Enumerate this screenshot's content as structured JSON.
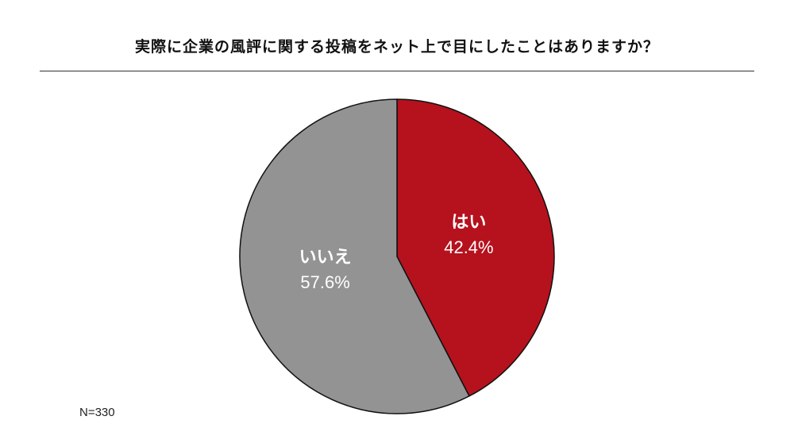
{
  "chart_data": {
    "type": "pie",
    "title": "実際に企業の風評に関する投稿をネット上で目にしたことはありますか？",
    "slices": [
      {
        "label": "はい",
        "value": 42.4,
        "value_label": "42.4%",
        "color": "#b5121d"
      },
      {
        "label": "いいえ",
        "value": 57.6,
        "value_label": "57.6%",
        "color": "#939393"
      }
    ],
    "start": "12 o'clock",
    "direction": "clockwise",
    "legend": "none",
    "note": "N=330"
  }
}
